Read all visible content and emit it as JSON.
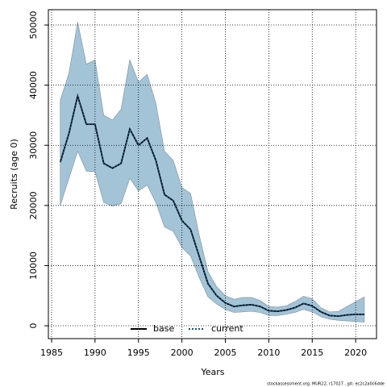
{
  "chart_data": {
    "type": "line",
    "xlabel": "Years",
    "ylabel": "Recruits (age 0)",
    "footnote": "stockassessment.org, MUR22, r17027 , git: ec2c2a0c6dde",
    "x": [
      1986,
      1987,
      1988,
      1989,
      1990,
      1991,
      1992,
      1993,
      1994,
      1995,
      1996,
      1997,
      1998,
      1999,
      2000,
      2001,
      2002,
      2003,
      2004,
      2005,
      2006,
      2007,
      2008,
      2009,
      2010,
      2011,
      2012,
      2013,
      2014,
      2015,
      2016,
      2017,
      2018,
      2019,
      2020,
      2021
    ],
    "band": {
      "color": "#a3c4d6",
      "upper": [
        37500,
        42000,
        50500,
        43500,
        44200,
        35000,
        34200,
        36000,
        44200,
        40500,
        41800,
        37000,
        29000,
        27500,
        23000,
        22000,
        15000,
        9000,
        6500,
        5000,
        4400,
        4700,
        4700,
        4200,
        3200,
        3100,
        3300,
        4000,
        4900,
        4500,
        3000,
        2300,
        2400,
        3200,
        4000,
        4800
      ],
      "lower": [
        20000,
        24500,
        29000,
        25700,
        25600,
        20500,
        19900,
        20300,
        24500,
        22400,
        23400,
        20500,
        16400,
        15700,
        13000,
        11600,
        8000,
        4800,
        3600,
        2700,
        2200,
        2300,
        2400,
        2200,
        1700,
        1700,
        1900,
        2200,
        2700,
        2300,
        1500,
        1100,
        900,
        800,
        700,
        600
      ]
    },
    "series": [
      {
        "name": "base",
        "color": "#000000",
        "dash": "solid",
        "values": [
          27200,
          32000,
          38200,
          33500,
          33500,
          27000,
          26200,
          27000,
          32700,
          30000,
          31200,
          27500,
          21800,
          20800,
          17500,
          16000,
          11500,
          7000,
          5000,
          3800,
          3200,
          3400,
          3500,
          3200,
          2500,
          2400,
          2600,
          3000,
          3700,
          3300,
          2300,
          1700,
          1600,
          1800,
          1900,
          1900
        ]
      },
      {
        "name": "current",
        "color": "#1a4f7a",
        "dash": "dotted",
        "values": [
          27200,
          32000,
          38200,
          33500,
          33500,
          27000,
          26200,
          27000,
          32700,
          30000,
          31200,
          27500,
          21800,
          20800,
          17500,
          16000,
          11500,
          7000,
          5000,
          3800,
          3200,
          3400,
          3500,
          3200,
          2500,
          2400,
          2600,
          3000,
          3700,
          3300,
          2300,
          1700,
          1600,
          1800,
          1900,
          1900
        ]
      }
    ],
    "xlim": [
      1984.63,
      2022.4
    ],
    "xticks": [
      1985,
      1990,
      1995,
      2000,
      2005,
      2010,
      2015,
      2020
    ],
    "ylim": [
      -2140,
      52550
    ],
    "yticks": [
      0,
      10000,
      20000,
      30000,
      40000,
      50000
    ],
    "grid": true,
    "legend": "bottom"
  }
}
